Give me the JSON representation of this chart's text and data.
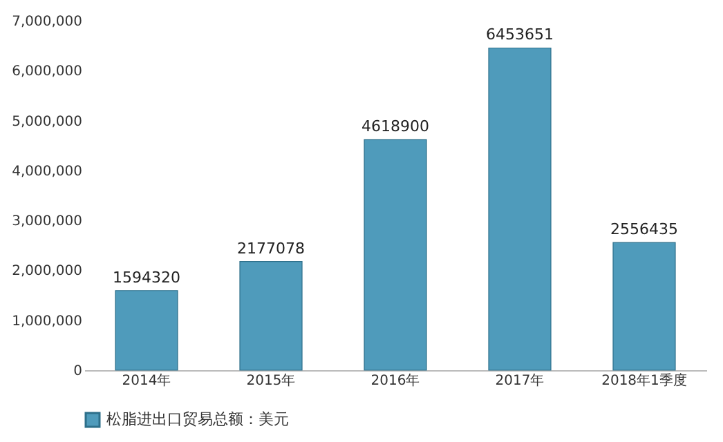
{
  "chart_data": {
    "type": "bar",
    "categories": [
      "2014年",
      "2015年",
      "2016年",
      "2017年",
      "2018年1季度"
    ],
    "series": [
      {
        "name": "松脂进出口贸易总额：美元",
        "color": "#4f9bbb",
        "values": [
          1594320,
          2177078,
          4618900,
          6453651,
          2556435
        ]
      }
    ],
    "ylim": [
      0,
      7000000
    ],
    "yticks": [
      {
        "value": 0,
        "label": "0"
      },
      {
        "value": 1000000,
        "label": "1,000,000"
      },
      {
        "value": 2000000,
        "label": "2,000,000"
      },
      {
        "value": 3000000,
        "label": "3,000,000"
      },
      {
        "value": 4000000,
        "label": "4,000,000"
      },
      {
        "value": 5000000,
        "label": "5,000,000"
      },
      {
        "value": 6000000,
        "label": "6,000,000"
      },
      {
        "value": 7000000,
        "label": "7,000,000"
      }
    ],
    "data_labels": true,
    "legend": "bottom",
    "grid": false
  }
}
